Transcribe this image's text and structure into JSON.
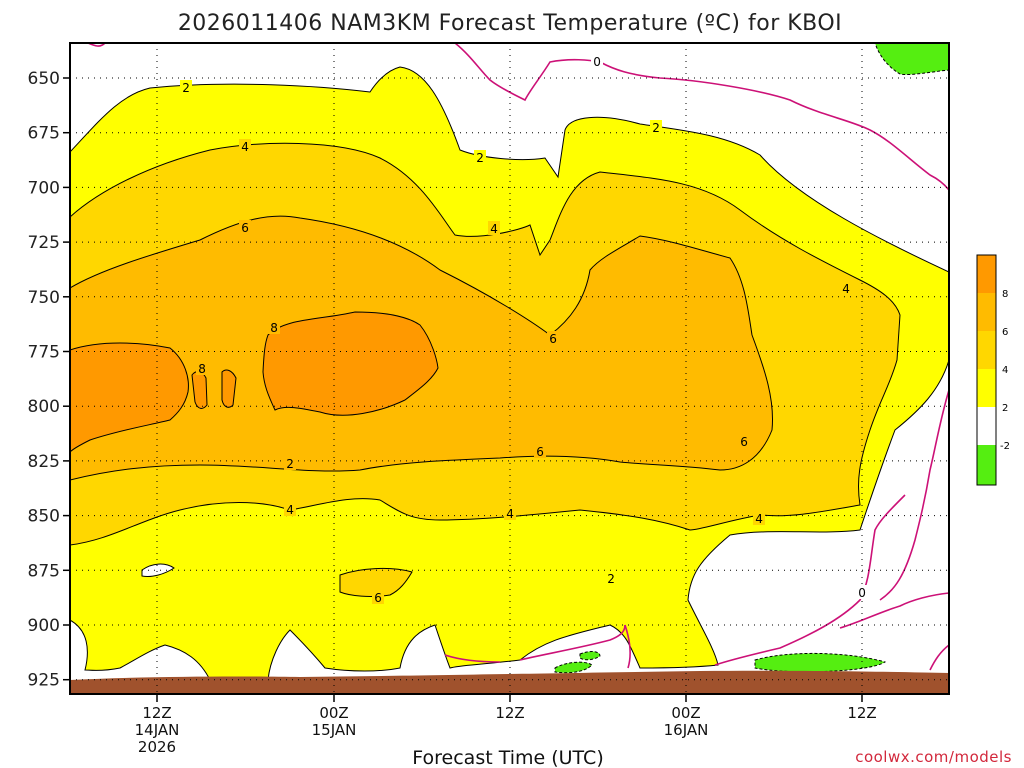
{
  "title": "2026011406 NAM3KM Forecast Temperature (ºC) for KBOI",
  "credit": "coolwx.com/models",
  "chart_data": {
    "type": "heatmap",
    "title": "2026011406 NAM3KM Forecast Temperature (ºC) for KBOI",
    "xlabel": "Forecast Time (UTC)",
    "ylabel": "",
    "y_axis": "pressure (hPa), inverted",
    "y_ticks": [
      650,
      675,
      700,
      725,
      750,
      775,
      800,
      825,
      850,
      875,
      900,
      925
    ],
    "x_ticks": [
      {
        "line1": "12Z",
        "line2": "14JAN",
        "line3": "2026"
      },
      {
        "line1": "00Z",
        "line2": "15JAN",
        "line3": ""
      },
      {
        "line1": "12Z",
        "line2": "",
        "line3": ""
      },
      {
        "line1": "00Z",
        "line2": "16JAN",
        "line3": ""
      },
      {
        "line1": "12Z",
        "line2": "",
        "line3": ""
      }
    ],
    "grid": true,
    "contour_levels": [
      -2,
      0,
      2,
      4,
      6,
      8
    ],
    "contour_labels": [
      "2",
      "4",
      "6",
      "8",
      "8",
      "2",
      "4",
      "6",
      "2",
      "4",
      "6",
      "2",
      "0",
      "4",
      "6",
      "2",
      "4",
      "6",
      "4",
      "0"
    ],
    "colorbar": {
      "ticks": [
        "8",
        "6",
        "4",
        "2",
        "-2"
      ],
      "colors": {
        "above_8": "#ff9900",
        "6_to_8": "#ffbb00",
        "4_to_6": "#ffd700",
        "2_to_4": "#ffff00",
        "neg2_to_2": "#ffffff",
        "below_neg2": "#55ee11"
      }
    },
    "terrain_color": "#a0522d",
    "zero_contour_color": "#cc1177"
  }
}
